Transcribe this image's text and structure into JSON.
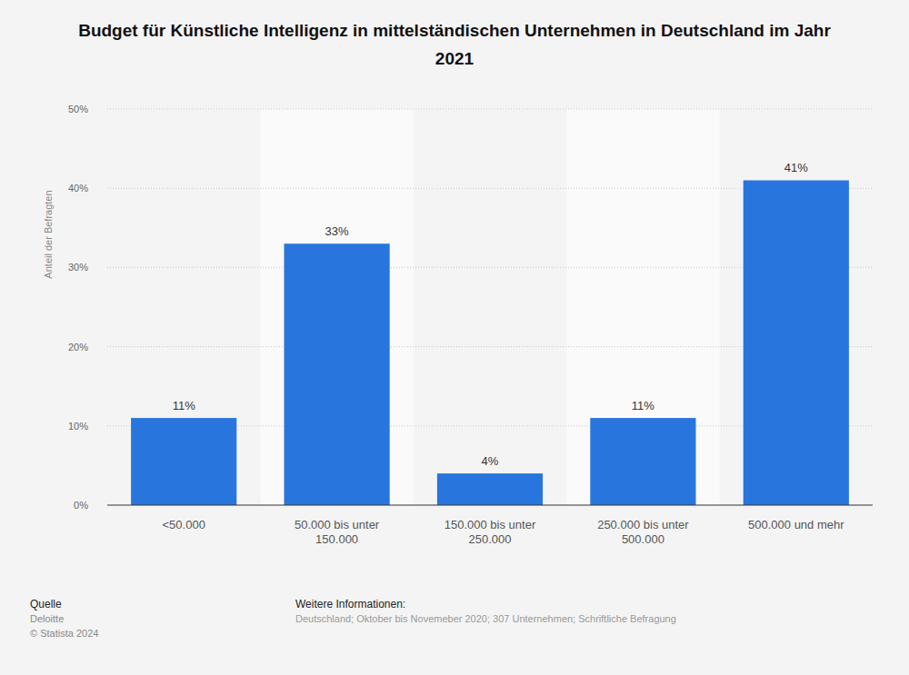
{
  "chart_data": {
    "type": "bar",
    "title": "Budget für Künstliche Intelligenz in mittelständischen Unternehmen in Deutschland im Jahr 2021",
    "y_label": "Anteil der Befragten",
    "categories": [
      "<50.000",
      "50.000 bis unter 150.000",
      "150.000 bis unter 250.000",
      "250.000 bis unter 500.000",
      "500.000 und mehr"
    ],
    "values": [
      11,
      33,
      4,
      11,
      41
    ],
    "value_labels": [
      "11%",
      "33%",
      "4%",
      "11%",
      "41%"
    ],
    "color": "#2876dd",
    "ylim": [
      0,
      50
    ],
    "yticks": [
      {
        "value": 0,
        "label": "0%"
      },
      {
        "value": 10,
        "label": "10%"
      },
      {
        "value": 20,
        "label": "20%"
      },
      {
        "value": 30,
        "label": "30%"
      },
      {
        "value": 40,
        "label": "40%"
      },
      {
        "value": 50,
        "label": "50%"
      }
    ],
    "grid": true,
    "data_labels": true,
    "source_label": "Quelle",
    "source": [
      "Deloitte",
      "© Statista 2024"
    ],
    "info_label": "Weitere Informationen:",
    "info": "Deutschland; Oktober bis Novemeber 2020; 307 Unternehmen; Schriftliche Befragung"
  }
}
